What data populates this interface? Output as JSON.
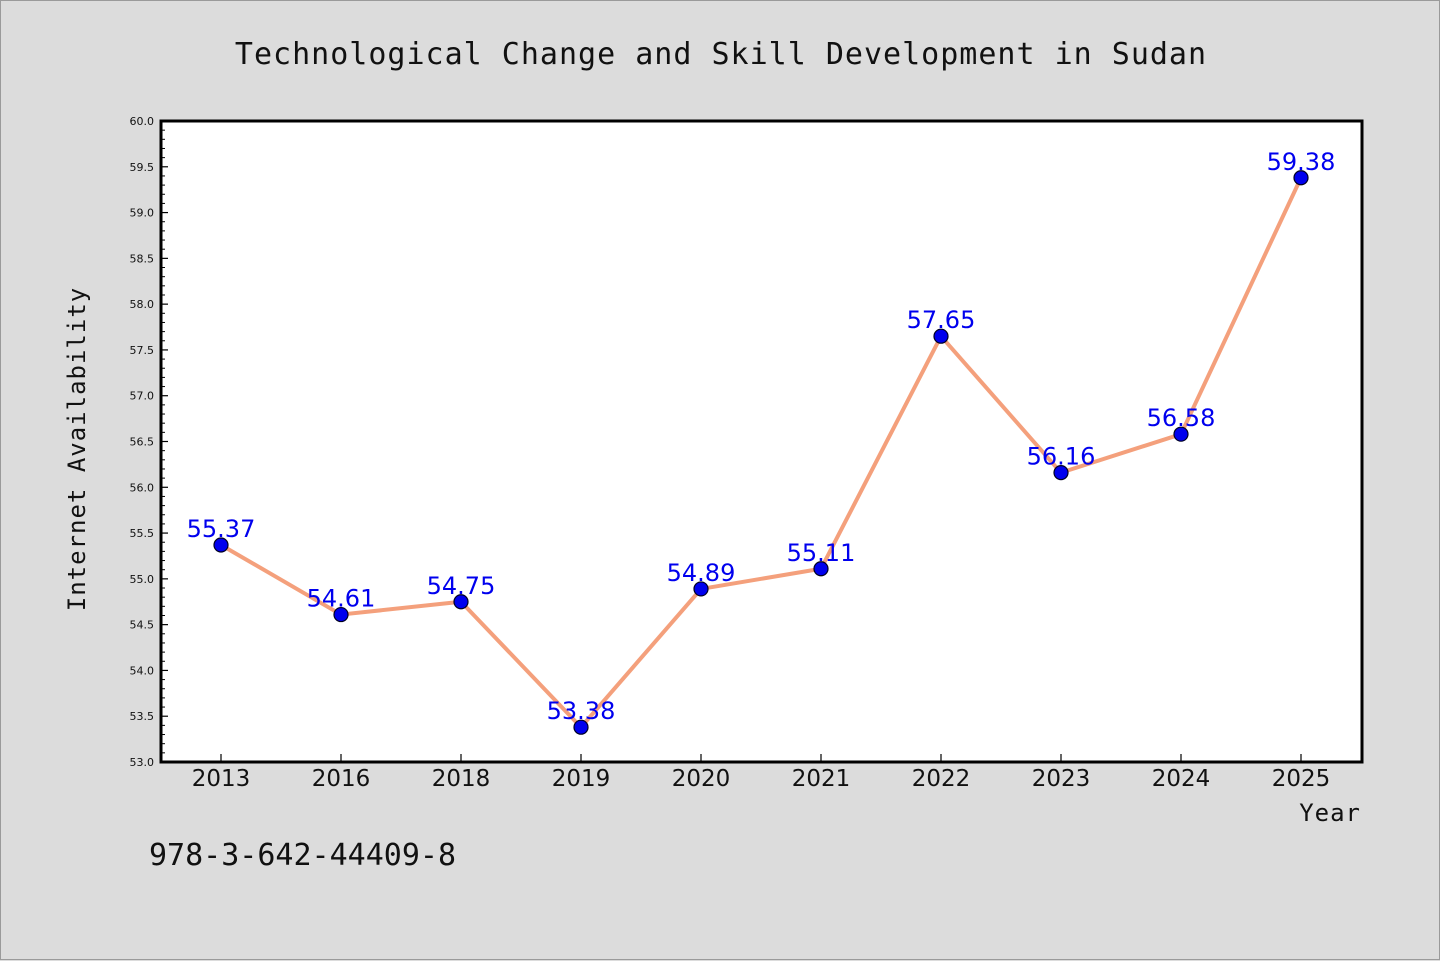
{
  "chart_data": {
    "type": "line",
    "title": "Technological Change and Skill Development in Sudan",
    "xlabel": "Year",
    "ylabel": "Internet Availability",
    "categories": [
      "2013",
      "2016",
      "2018",
      "2019",
      "2020",
      "2021",
      "2022",
      "2023",
      "2024",
      "2025"
    ],
    "series": [
      {
        "values": [
          55.37,
          54.61,
          54.75,
          53.38,
          54.89,
          55.11,
          57.65,
          56.16,
          56.58,
          59.38
        ],
        "data_labels": [
          "55.37",
          "54.61",
          "54.75",
          "53.38",
          "54.89",
          "55.11",
          "57.65",
          "56.16",
          "56.58",
          "59.38"
        ]
      }
    ],
    "ylim": [
      53.0,
      60.0
    ],
    "yticks": [
      "53.0",
      "53.5",
      "54.0",
      "54.5",
      "55.0",
      "55.5",
      "56.0",
      "56.5",
      "57.0",
      "57.5",
      "58.0",
      "58.5",
      "59.0",
      "59.5",
      "60.0"
    ],
    "grid": false,
    "colors": {
      "line": "#f4a07c",
      "marker": "#0000ee",
      "data_label": "#0000ee",
      "plot_background": "#ffffff",
      "page_background": "#dcdcdc"
    }
  },
  "annotation": {
    "isbn": "978-3-642-44409-8"
  }
}
